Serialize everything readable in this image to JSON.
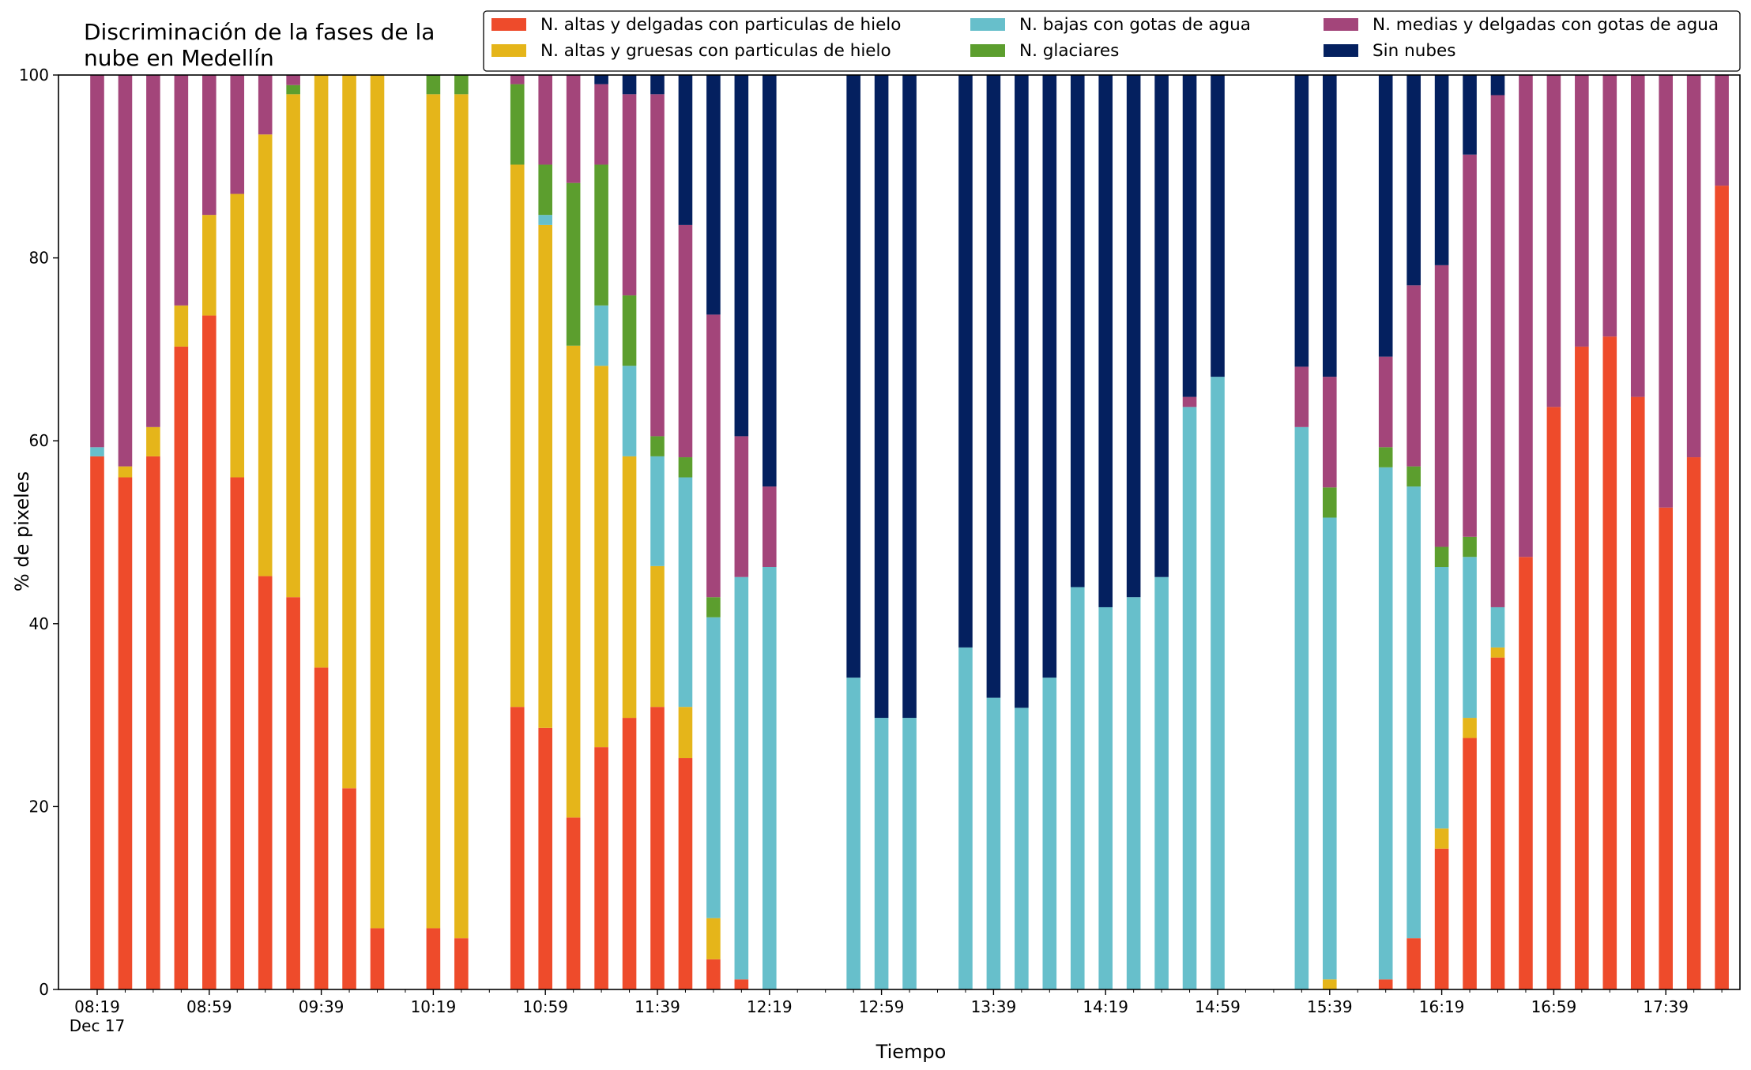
{
  "chart_data": {
    "type": "bar",
    "stacked": true,
    "title_lines": [
      "Discriminación de la fases de la",
      "nube en Medellín"
    ],
    "xlabel": "Tiempo",
    "ylabel": "% de pixeles",
    "ylim": [
      0,
      100
    ],
    "yticks": [
      0,
      20,
      40,
      60,
      80,
      100
    ],
    "xlim_min": [
      -0.45,
      58.8
    ],
    "x_interval_min": 10,
    "x_start_time": "08:19",
    "xtick_labels": [
      {
        "slot": 0,
        "label": "08:19",
        "sub": "Dec 17"
      },
      {
        "slot": 4,
        "label": "08:59"
      },
      {
        "slot": 8,
        "label": "09:39"
      },
      {
        "slot": 12,
        "label": "10:19"
      },
      {
        "slot": 16,
        "label": "10:59"
      },
      {
        "slot": 20,
        "label": "11:39"
      },
      {
        "slot": 24,
        "label": "12:19"
      },
      {
        "slot": 28,
        "label": "12:59"
      },
      {
        "slot": 32,
        "label": "13:39"
      },
      {
        "slot": 36,
        "label": "14:19"
      },
      {
        "slot": 40,
        "label": "14:59"
      },
      {
        "slot": 44,
        "label": "15:39"
      },
      {
        "slot": 48,
        "label": "16:19"
      },
      {
        "slot": 52,
        "label": "16:59"
      },
      {
        "slot": 56,
        "label": "17:39"
      }
    ],
    "legend": {
      "placement": "top-right",
      "columns": [
        [
          "ice_thin",
          "ice_thick"
        ],
        [
          "water_low",
          "glacier"
        ],
        [
          "water_mid",
          "clear"
        ]
      ]
    },
    "series": [
      {
        "key": "ice_thin",
        "name": "N. altas y delgadas con particulas de hielo",
        "color": "#ee4b2b"
      },
      {
        "key": "ice_thick",
        "name": "N. altas y gruesas con particulas de hielo",
        "color": "#e5b51a"
      },
      {
        "key": "water_low",
        "name": "N. bajas con gotas de agua",
        "color": "#67bfcb"
      },
      {
        "key": "glacier",
        "name": "N. glaciares",
        "color": "#5c9e2e"
      },
      {
        "key": "water_mid",
        "name": "N. medias y delgadas con gotas de agua",
        "color": "#a3457a"
      },
      {
        "key": "clear",
        "name": "Sin nubes",
        "color": "#04205f"
      }
    ],
    "bars": [
      {
        "time": "08:19",
        "values": [
          58.3,
          0,
          1,
          0,
          40.7,
          0
        ]
      },
      {
        "time": "08:29",
        "values": [
          56,
          1.2,
          0,
          0,
          42.8,
          0
        ]
      },
      {
        "time": "08:39",
        "values": [
          58.3,
          3.2,
          0,
          0,
          38.5,
          0
        ]
      },
      {
        "time": "08:49",
        "values": [
          70.3,
          4.5,
          0,
          0,
          25.2,
          0
        ]
      },
      {
        "time": "08:59",
        "values": [
          73.7,
          11,
          0,
          0,
          15.3,
          0
        ]
      },
      {
        "time": "09:09",
        "values": [
          56,
          31,
          0,
          0,
          13,
          0
        ]
      },
      {
        "time": "09:19",
        "values": [
          45.2,
          48.3,
          0,
          0,
          6.5,
          0
        ]
      },
      {
        "time": "09:29",
        "values": [
          42.9,
          55,
          0,
          1,
          1.1,
          0
        ]
      },
      {
        "time": "09:39",
        "values": [
          35.2,
          64.8,
          0,
          0,
          0,
          0
        ]
      },
      {
        "time": "09:49",
        "values": [
          22,
          78,
          0,
          0,
          0,
          0
        ]
      },
      {
        "time": "09:59",
        "values": [
          6.7,
          93.3,
          0,
          0,
          0,
          0
        ]
      },
      null,
      {
        "time": "10:19",
        "values": [
          6.7,
          91.2,
          0,
          2.1,
          0,
          0
        ]
      },
      {
        "time": "10:29",
        "values": [
          5.6,
          92.3,
          0,
          2.1,
          0,
          0
        ]
      },
      null,
      {
        "time": "10:49",
        "values": [
          30.9,
          59.3,
          0,
          8.8,
          1,
          0
        ]
      },
      {
        "time": "10:59",
        "values": [
          28.6,
          55,
          1.1,
          5.5,
          9.8,
          0
        ]
      },
      {
        "time": "11:09",
        "values": [
          18.8,
          51.6,
          0,
          17.8,
          11.8,
          0
        ]
      },
      {
        "time": "11:19",
        "values": [
          26.5,
          41.7,
          6.6,
          15.4,
          8.8,
          1
        ]
      },
      {
        "time": "11:29",
        "values": [
          29.7,
          28.6,
          9.9,
          7.7,
          22,
          2.1
        ]
      },
      {
        "time": "11:39",
        "values": [
          30.9,
          15.4,
          12,
          2.2,
          37.4,
          2.1
        ]
      },
      {
        "time": "11:49",
        "values": [
          25.3,
          5.6,
          25.1,
          2.2,
          25.4,
          16.4
        ]
      },
      {
        "time": "11:59",
        "values": [
          3.3,
          4.5,
          32.9,
          2.2,
          30.9,
          26.2
        ]
      },
      {
        "time": "12:09",
        "values": [
          1.1,
          0,
          44,
          0,
          15.4,
          39.5
        ]
      },
      {
        "time": "12:19",
        "values": [
          0,
          0,
          46.2,
          0,
          8.8,
          45
        ]
      },
      null,
      null,
      {
        "time": "12:49",
        "values": [
          0,
          0,
          34.1,
          0,
          0,
          65.9
        ]
      },
      {
        "time": "12:59",
        "values": [
          0,
          0,
          29.7,
          0,
          0,
          70.3
        ]
      },
      {
        "time": "13:09",
        "values": [
          0,
          0,
          29.7,
          0,
          0,
          70.3
        ]
      },
      null,
      {
        "time": "13:29",
        "values": [
          0,
          0,
          37.4,
          0,
          0,
          62.6
        ]
      },
      {
        "time": "13:39",
        "values": [
          0,
          0,
          31.9,
          0,
          0,
          68.1
        ]
      },
      {
        "time": "13:49",
        "values": [
          0,
          0,
          30.8,
          0,
          0,
          69.2
        ]
      },
      {
        "time": "13:59",
        "values": [
          0,
          0,
          34.1,
          0,
          0,
          65.9
        ]
      },
      {
        "time": "14:09",
        "values": [
          0,
          0,
          44,
          0,
          0,
          56
        ]
      },
      {
        "time": "14:19",
        "values": [
          0,
          0,
          41.8,
          0,
          0,
          58.2
        ]
      },
      {
        "time": "14:29",
        "values": [
          0,
          0,
          42.9,
          0,
          0,
          57.1
        ]
      },
      {
        "time": "14:39",
        "values": [
          0,
          0,
          45.1,
          0,
          0,
          54.9
        ]
      },
      {
        "time": "14:49",
        "values": [
          0,
          0,
          63.7,
          0,
          1.1,
          35.2
        ]
      },
      {
        "time": "14:59",
        "values": [
          0,
          0,
          67,
          0,
          0,
          33
        ]
      },
      null,
      null,
      {
        "time": "15:29",
        "values": [
          0,
          0,
          61.5,
          0,
          6.6,
          31.9
        ]
      },
      {
        "time": "15:39",
        "values": [
          0,
          1.1,
          50.5,
          3.3,
          12.1,
          33
        ]
      },
      null,
      {
        "time": "15:59",
        "values": [
          1.1,
          0,
          56,
          2.2,
          9.9,
          30.8
        ]
      },
      {
        "time": "16:09",
        "values": [
          5.6,
          0,
          49.4,
          2.2,
          19.8,
          23
        ]
      },
      {
        "time": "16:19",
        "values": [
          15.4,
          2.2,
          28.6,
          2.2,
          30.8,
          20.8
        ]
      },
      {
        "time": "16:29",
        "values": [
          27.5,
          2.2,
          17.6,
          2.2,
          41.8,
          8.7
        ]
      },
      {
        "time": "16:39",
        "values": [
          36.3,
          1.1,
          4.4,
          0,
          56,
          2.2
        ]
      },
      {
        "time": "16:49",
        "values": [
          47.3,
          0,
          0,
          0,
          52.7,
          0
        ]
      },
      {
        "time": "16:59",
        "values": [
          63.7,
          0,
          0,
          0,
          36.3,
          0
        ]
      },
      {
        "time": "17:09",
        "values": [
          70.3,
          0,
          0,
          0,
          29.7,
          0
        ]
      },
      {
        "time": "17:19",
        "values": [
          71.4,
          0,
          0,
          0,
          28.6,
          0
        ]
      },
      {
        "time": "17:29",
        "values": [
          64.8,
          0,
          0,
          0,
          35.2,
          0
        ]
      },
      {
        "time": "17:39",
        "values": [
          52.7,
          0,
          0,
          0,
          47.3,
          0
        ]
      },
      {
        "time": "17:49",
        "values": [
          58.2,
          0,
          0,
          0,
          41.8,
          0
        ]
      },
      {
        "time": "17:59",
        "values": [
          87.9,
          0,
          0,
          0,
          12.1,
          0
        ]
      }
    ]
  }
}
